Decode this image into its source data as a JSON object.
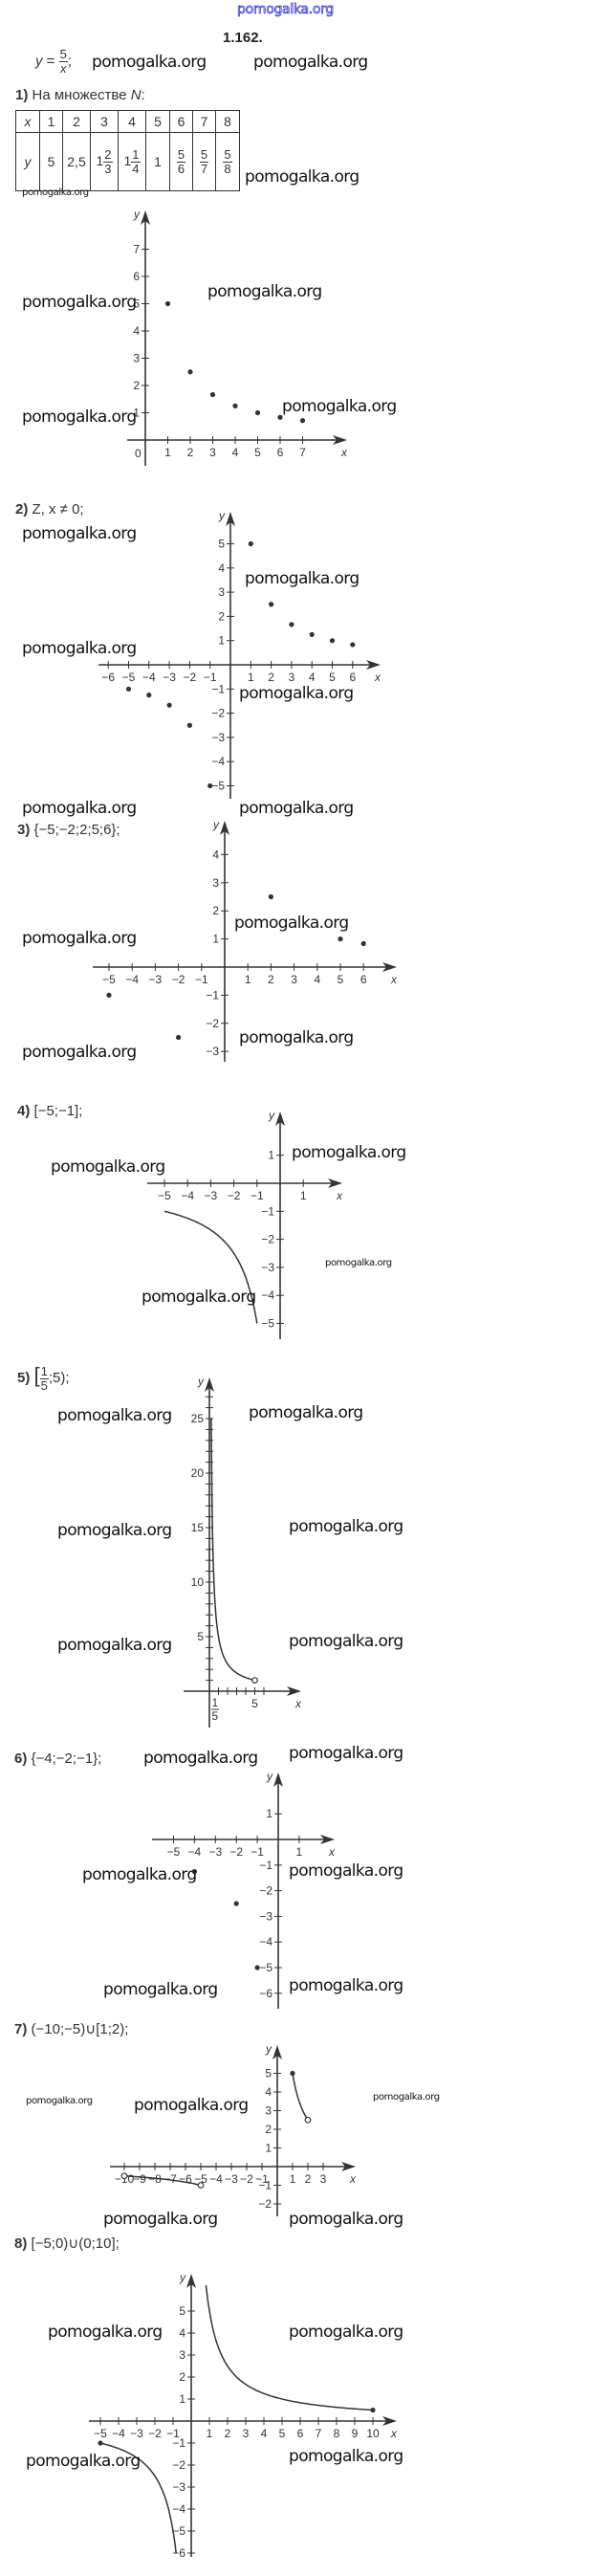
{
  "site_watermark": "pomogalka.org",
  "watermark": "pomogalka.org",
  "problem_number": "1.162.",
  "function": {
    "lhs": "y",
    "eq": "=",
    "num": "5",
    "den": "x",
    "end": ";"
  },
  "parts": [
    {
      "num": "1)",
      "text": "На множестве",
      "set": "N",
      "end": ":"
    },
    {
      "num": "2)",
      "text": "Z, x ≠ 0;"
    },
    {
      "num": "3)",
      "text": "{−5;−2;2;5;6};"
    },
    {
      "num": "4)",
      "text": "[−5;−1];"
    },
    {
      "num": "5)",
      "open": "[",
      "frac_num": "1",
      "frac_den": "5",
      "rest": ";5);"
    },
    {
      "num": "6)",
      "text": "{−4;−2;−1};"
    },
    {
      "num": "7)",
      "text": "(−10;−5)∪[1;2);"
    },
    {
      "num": "8)",
      "text": "[−5;0)∪(0;10];"
    }
  ],
  "table": {
    "x_row": [
      "x",
      "1",
      "2",
      "3",
      "4",
      "5",
      "6",
      "7",
      "8"
    ],
    "y_row": [
      {
        "v": "y"
      },
      {
        "v": "5"
      },
      {
        "v": "2,5"
      },
      {
        "w": "1",
        "n": "2",
        "d": "3"
      },
      {
        "w": "1",
        "n": "1",
        "d": "4"
      },
      {
        "v": "1"
      },
      {
        "w": "",
        "n": "5",
        "d": "6"
      },
      {
        "w": "",
        "n": "5",
        "d": "7"
      },
      {
        "w": "",
        "n": "5",
        "d": "8"
      }
    ]
  },
  "chart_data": [
    {
      "type": "scatter",
      "function": "y=5/x",
      "xlabel": "x",
      "ylabel": "y",
      "origin_label": "0",
      "xticks": [
        1,
        2,
        3,
        4,
        5,
        6,
        7
      ],
      "xtick_labels": [
        "1",
        "2",
        "3",
        "4",
        "5",
        "6",
        "7"
      ],
      "yticks": [
        1,
        2,
        3,
        4,
        5,
        6,
        7
      ],
      "ytick_labels": [
        "1",
        "2",
        "3",
        "4",
        "5",
        "6",
        "7"
      ],
      "points": [
        [
          1,
          5
        ],
        [
          2,
          2.5
        ],
        [
          3,
          1.667
        ],
        [
          4,
          1.25
        ],
        [
          5,
          1
        ],
        [
          6,
          0.833
        ],
        [
          7,
          0.714
        ]
      ],
      "curves": []
    },
    {
      "type": "scatter",
      "function": "y=5/x",
      "xlabel": "x",
      "ylabel": "y",
      "xticks": [
        -6,
        -5,
        -4,
        -3,
        -2,
        -1,
        1,
        2,
        3,
        4,
        5,
        6
      ],
      "xtick_labels": [
        "−6",
        "−5",
        "−4",
        "−3",
        "−2",
        "−1",
        "1",
        "2",
        "3",
        "4",
        "5",
        "6"
      ],
      "yticks": [
        -5,
        -4,
        -3,
        -2,
        -1,
        1,
        2,
        3,
        4,
        5
      ],
      "ytick_labels": [
        "−5",
        "−4",
        "−3",
        "−2",
        "−1",
        "1",
        "2",
        "3",
        "4",
        "5"
      ],
      "points": [
        [
          -5,
          -1
        ],
        [
          -4,
          -1.25
        ],
        [
          -3,
          -1.667
        ],
        [
          -2,
          -2.5
        ],
        [
          -1,
          -5
        ],
        [
          1,
          5
        ],
        [
          2,
          2.5
        ],
        [
          3,
          1.667
        ],
        [
          4,
          1.25
        ],
        [
          5,
          1
        ],
        [
          6,
          0.833
        ]
      ],
      "curves": []
    },
    {
      "type": "scatter",
      "function": "y=5/x",
      "xlabel": "x",
      "ylabel": "y",
      "xticks": [
        -5,
        -4,
        -3,
        -2,
        -1,
        1,
        2,
        3,
        4,
        5,
        6
      ],
      "xtick_labels": [
        "−5",
        "−4",
        "−3",
        "−2",
        "−1",
        "1",
        "2",
        "3",
        "4",
        "5",
        "6"
      ],
      "yticks": [
        -3,
        -2,
        -1,
        1,
        2,
        3,
        4
      ],
      "ytick_labels": [
        "−3",
        "−2",
        "−1",
        "1",
        "2",
        "3",
        "4"
      ],
      "points": [
        [
          -5,
          -1
        ],
        [
          -2,
          -2.5
        ],
        [
          2,
          2.5
        ],
        [
          5,
          1
        ],
        [
          6,
          0.833
        ]
      ],
      "curves": []
    },
    {
      "type": "line",
      "function": "y=5/x",
      "xlabel": "x",
      "ylabel": "y",
      "xticks": [
        -5,
        -4,
        -3,
        -2,
        -1,
        1
      ],
      "xtick_labels": [
        "−5",
        "−4",
        "−3",
        "−2",
        "−1",
        "1"
      ],
      "yticks": [
        -5,
        -4,
        -3,
        -2,
        -1,
        1
      ],
      "ytick_labels": [
        "−5",
        "−4",
        "−3",
        "−2",
        "−1",
        "1"
      ],
      "points": [],
      "curves": [
        {
          "domain": [
            -5,
            -1
          ],
          "start": "none",
          "end": "none"
        }
      ]
    },
    {
      "type": "line",
      "function": "y=5/x",
      "xlabel": "x",
      "ylabel": "y",
      "xticks": [
        1,
        2,
        3,
        4,
        5,
        6
      ],
      "xtick_labels": [
        "1/5",
        "5"
      ],
      "xtick_label_at": [
        0.2,
        5
      ],
      "yticks": [
        1,
        2,
        3,
        4,
        5,
        6,
        7,
        8,
        9,
        10,
        11,
        12,
        13,
        14,
        15,
        16,
        17,
        18,
        19,
        20,
        21,
        22,
        23,
        24,
        25,
        26,
        27
      ],
      "ytick_labels": [
        "5",
        "10",
        "15",
        "20",
        "25"
      ],
      "ytick_label_at": [
        5,
        10,
        15,
        20,
        25
      ],
      "points": [],
      "curves": [
        {
          "domain": [
            0.2,
            5
          ],
          "start": "none",
          "end": "open"
        }
      ]
    },
    {
      "type": "scatter",
      "function": "y=5/x",
      "xlabel": "x",
      "ylabel": "y",
      "xticks": [
        -5,
        -4,
        -3,
        -2,
        -1,
        1
      ],
      "xtick_labels": [
        "−5",
        "−4",
        "−3",
        "−2",
        "−1",
        "1"
      ],
      "yticks": [
        -6,
        -5,
        -4,
        -3,
        -2,
        -1,
        1
      ],
      "ytick_labels": [
        "−6",
        "−5",
        "−4",
        "−3",
        "−2",
        "−1",
        "1"
      ],
      "points": [
        [
          -4,
          -1.25
        ],
        [
          -2,
          -2.5
        ],
        [
          -1,
          -5
        ]
      ],
      "curves": []
    },
    {
      "type": "line",
      "function": "y=5/x",
      "xlabel": "x",
      "ylabel": "y",
      "xticks": [
        -10,
        -9,
        -8,
        -7,
        -6,
        -5,
        -4,
        -3,
        -2,
        -1,
        1,
        2,
        3
      ],
      "xtick_labels": [
        "−10",
        "−9",
        "−8",
        "−7",
        "−6",
        "−5",
        "−4",
        "−3",
        "−2",
        "−1",
        "1",
        "2",
        "3"
      ],
      "yticks": [
        -2,
        -1,
        1,
        2,
        3,
        4,
        5
      ],
      "ytick_labels": [
        "−2",
        "−1",
        "1",
        "2",
        "3",
        "4",
        "5"
      ],
      "points": [],
      "curves": [
        {
          "domain": [
            -10,
            -5
          ],
          "start": "open",
          "end": "open"
        },
        {
          "domain": [
            1,
            2
          ],
          "start": "closed",
          "end": "open"
        }
      ]
    },
    {
      "type": "line",
      "function": "y=5/x",
      "xlabel": "x",
      "ylabel": "y",
      "xticks": [
        -5,
        -4,
        -3,
        -2,
        -1,
        1,
        2,
        3,
        4,
        5,
        6,
        7,
        8,
        9,
        10
      ],
      "xtick_labels": [
        "−5",
        "−4",
        "−3",
        "−2",
        "−1",
        "1",
        "2",
        "3",
        "4",
        "5",
        "6",
        "7",
        "8",
        "9",
        "10"
      ],
      "yticks": [
        -6,
        -5,
        -4,
        -3,
        -2,
        -1,
        1,
        2,
        3,
        4,
        5
      ],
      "ytick_labels": [
        "−6",
        "−5",
        "−4",
        "−3",
        "−2",
        "−1",
        "1",
        "2",
        "3",
        "4",
        "5"
      ],
      "points": [],
      "curves": [
        {
          "domain": [
            -5,
            -0.833
          ],
          "start": "closed",
          "end": "none"
        },
        {
          "domain": [
            0.81,
            10
          ],
          "start": "none",
          "end": "closed"
        }
      ]
    }
  ]
}
